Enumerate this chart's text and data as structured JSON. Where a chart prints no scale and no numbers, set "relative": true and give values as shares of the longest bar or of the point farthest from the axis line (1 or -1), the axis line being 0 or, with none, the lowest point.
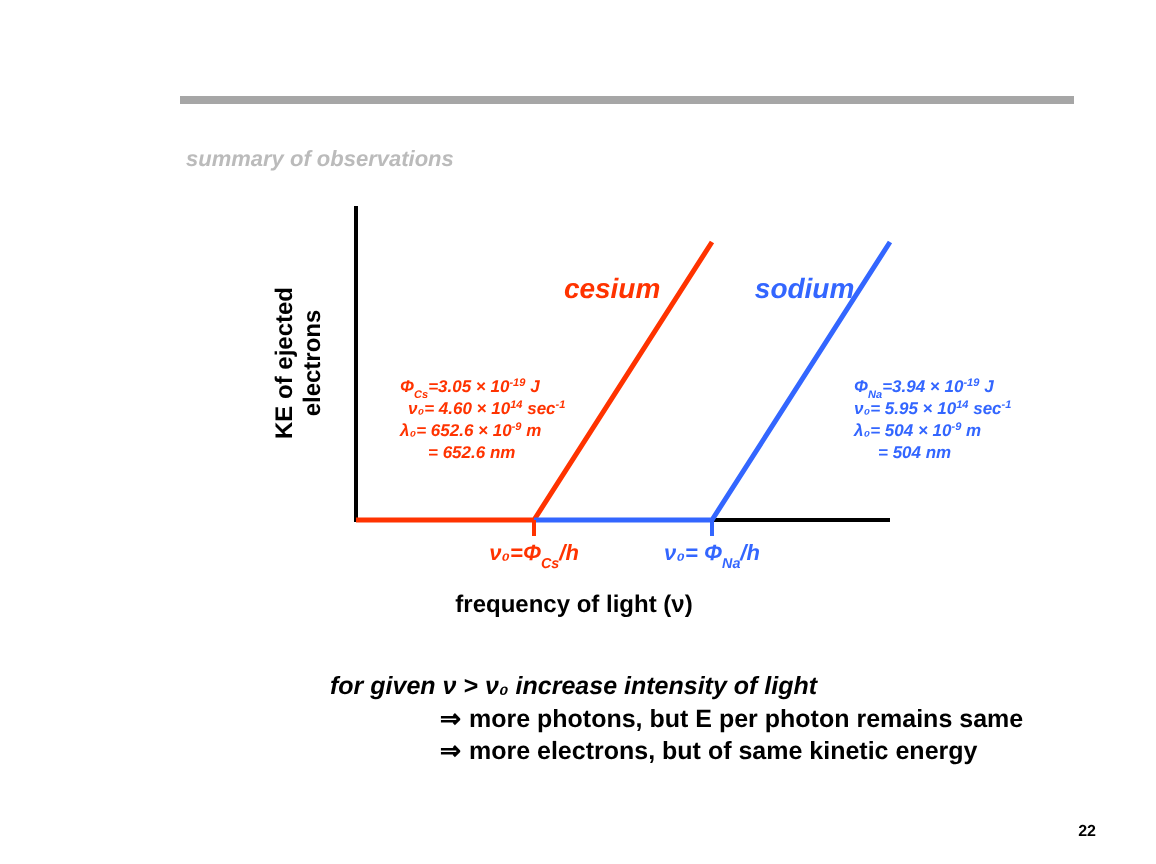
{
  "chart_data": {
    "type": "line",
    "title": "summary of observations",
    "xlabel": "frequency of light (ν)",
    "ylabel": "KE of ejected electrons",
    "relative": true,
    "categories": [
      null,
      "ν₀=Φ$_{Cs}$/h",
      "ν₀= Φ$_{Na}$/h",
      null
    ],
    "series": [
      {
        "name": "cesium",
        "color": "#ff3300",
        "values": [
          0,
          0,
          1,
          null
        ]
      },
      {
        "name": "sodium",
        "color": "#3366ff",
        "values": [
          null,
          0,
          0,
          1
        ]
      }
    ],
    "annotations": [
      "Φ$_{Cs}$=3.05  × 10$^{-19}$ J\nν₀= 4.60 × 10$^{14}$ sec$^{-1}$\nλ₀= 652.6 × 10$^{-9}$ m\n= 652.6 nm",
      "Φ$_{Na}$=3.94  × 10$^{-19}$ J\nν₀= 5.95 × 10$^{14}$ sec$^{-1}$\nλ₀= 504 × 10$^{-9}$ m\n= 504 nm",
      "for given ν > ν₀  increase intensity of light\n⇒ more photons, but E per photon remains same\n⇒ more electrons, but of same kinetic energy",
      "22"
    ],
    "marker": "none",
    "line_style": "solid"
  }
}
